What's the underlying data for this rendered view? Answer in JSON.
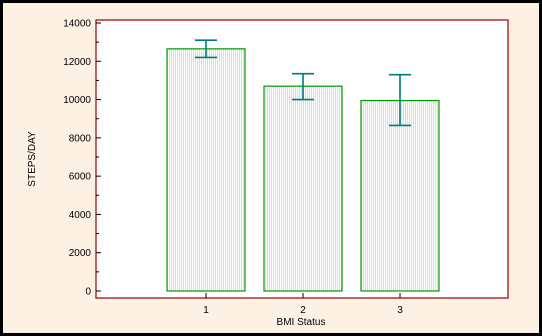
{
  "colors": {
    "page_background": "#fdf1e4",
    "plot_border": "#990000",
    "bar_outline": "#009900",
    "bar_fill_lines": "#dcdcdc",
    "error_bar": "#007a7a"
  },
  "chart_data": {
    "type": "bar",
    "categories": [
      "1",
      "2",
      "3"
    ],
    "values": [
      12650,
      10700,
      9950
    ],
    "error_bars": [
      {
        "low": 12200,
        "high": 13100
      },
      {
        "low": 10000,
        "high": 11350
      },
      {
        "low": 8650,
        "high": 11300
      }
    ],
    "xlabel": "BMI Status",
    "ylabel": "STEPS/DAY",
    "ylim": [
      0,
      14000
    ],
    "yticks": [
      0,
      2000,
      4000,
      6000,
      8000,
      10000,
      12000,
      14000
    ],
    "grid": false
  }
}
